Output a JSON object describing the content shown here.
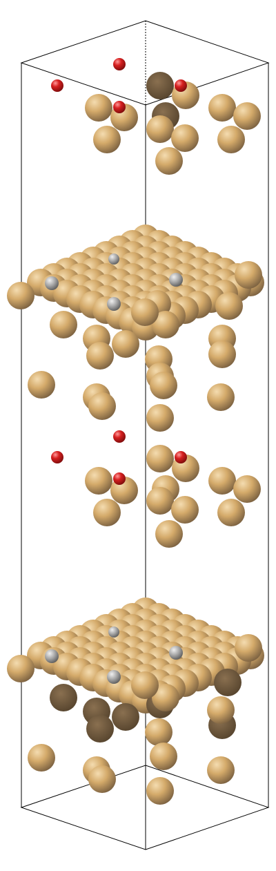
{
  "scene": {
    "description_visible_text": "",
    "colors": {
      "background": "#ffffff",
      "cell_edge": "#000000",
      "gold": "#d4aa6a",
      "gold_highlight": "#f2d7a6",
      "gold_shadow": "#5e4a31",
      "oxygen": "#cc1b1b",
      "oxygen_highlight": "#ff8a8a",
      "silver": "#9a9a9a",
      "silver_highlight": "#e8e8e8"
    },
    "atom_types": [
      "gold-atom",
      "oxygen-atom",
      "silver-atom"
    ],
    "icons": [
      "unit-cell-box",
      "atom-sphere"
    ]
  }
}
